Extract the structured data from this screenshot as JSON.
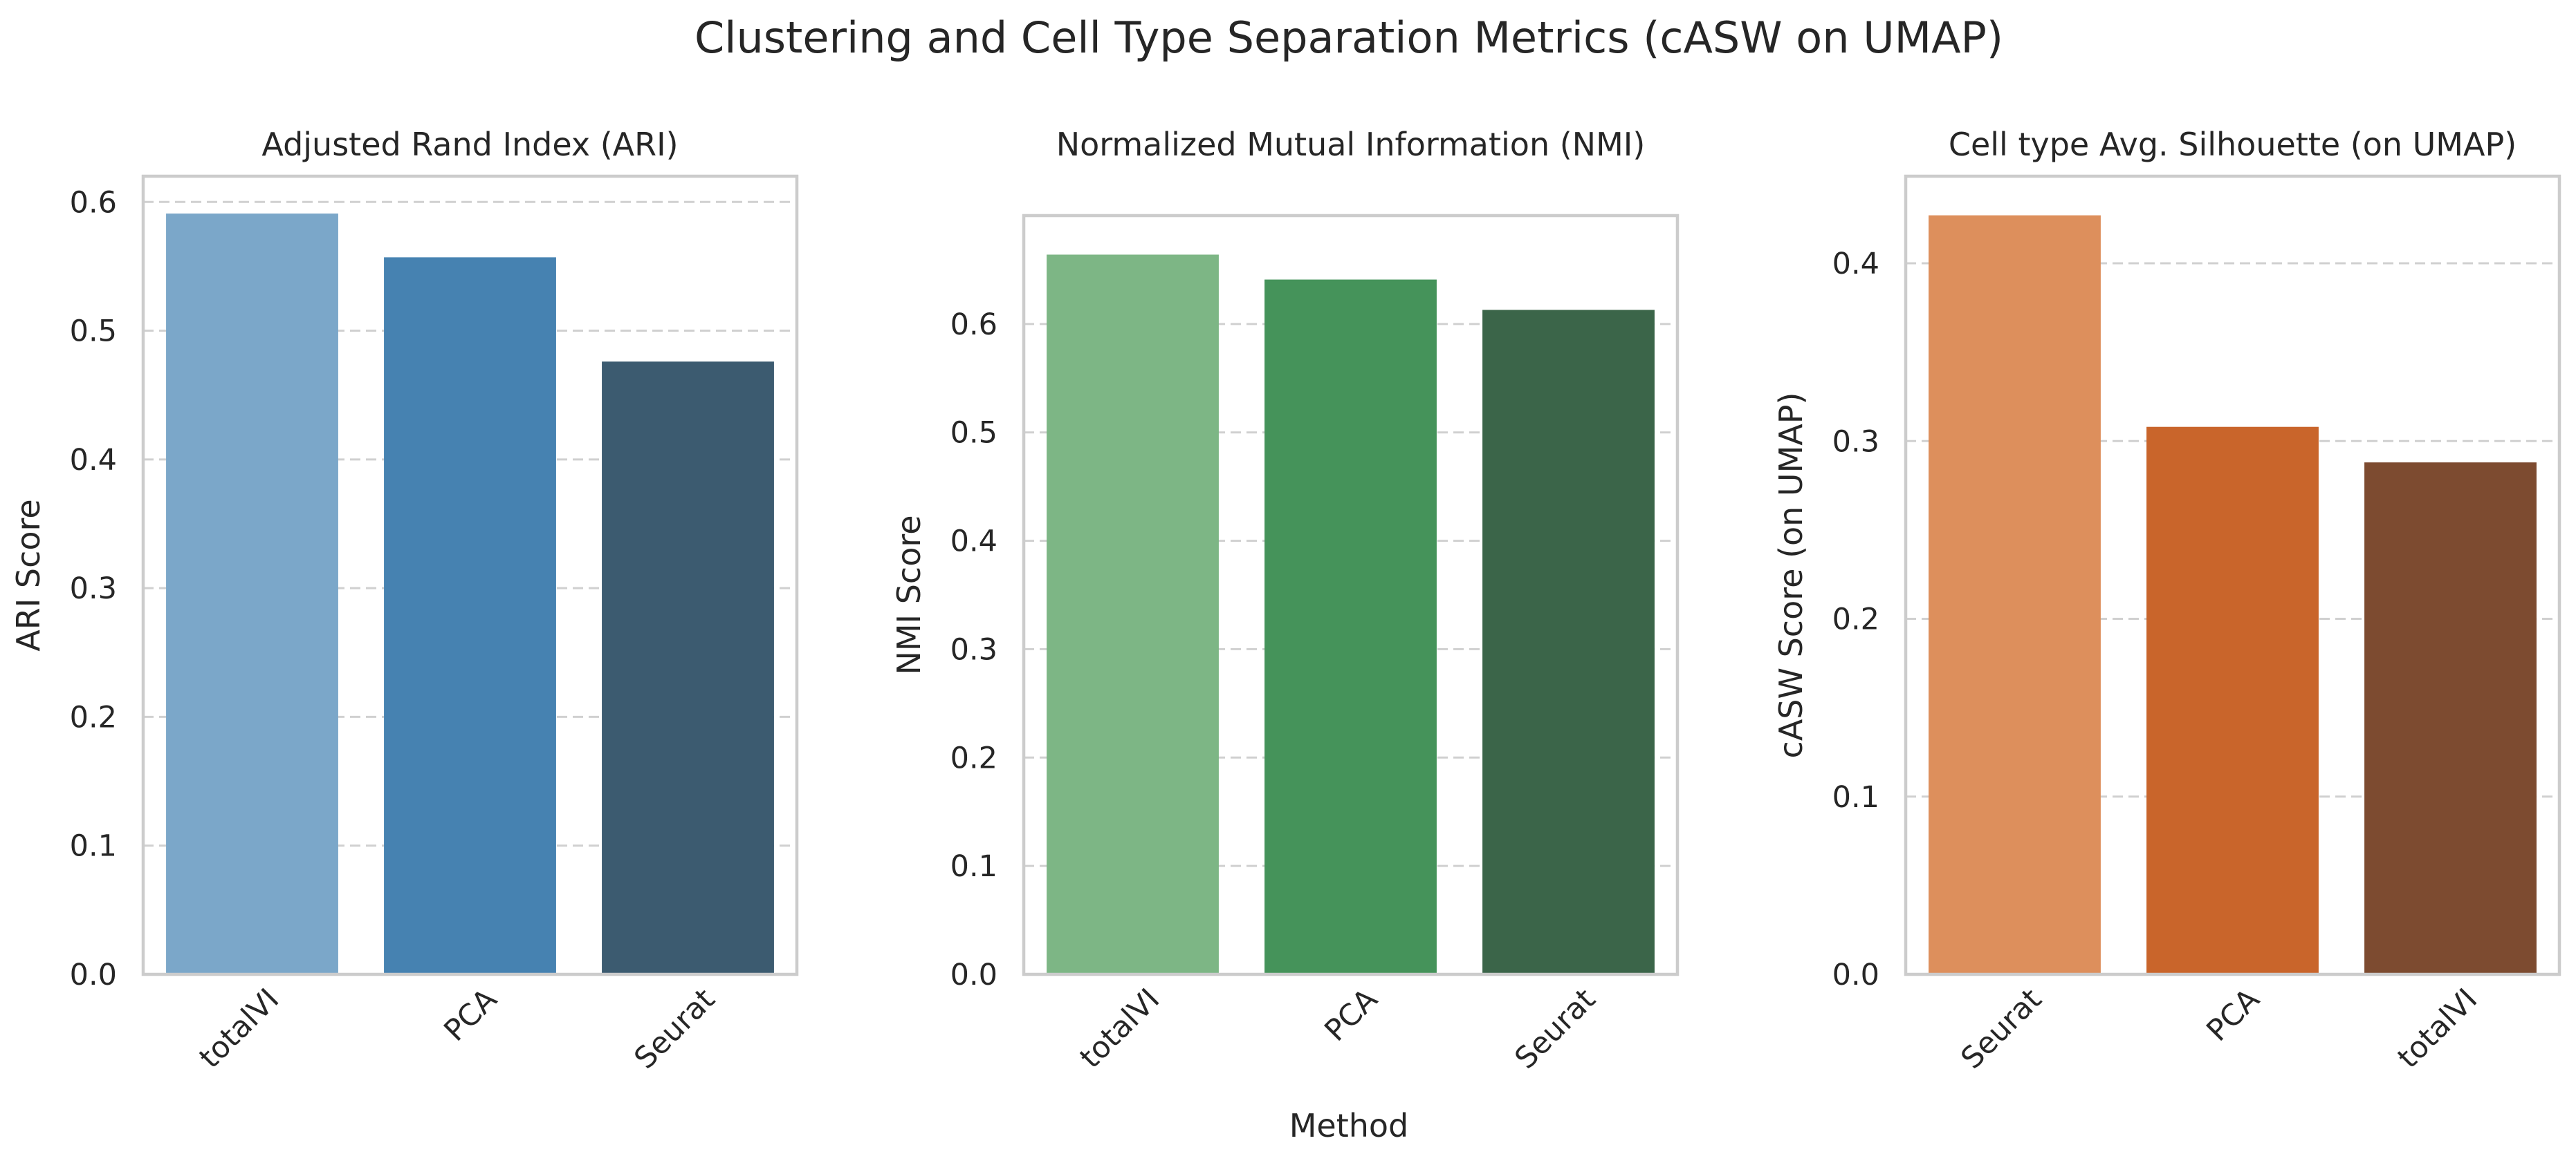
{
  "title": "Clustering and Cell Type Separation Metrics (cASW on UMAP)",
  "shared_xlabel": "Method",
  "chart_data": [
    {
      "type": "bar",
      "title": "Adjusted Rand Index (ARI)",
      "xlabel": "",
      "ylabel": "ARI Score",
      "categories": [
        "totalVI",
        "PCA",
        "Seurat"
      ],
      "values": [
        0.591,
        0.557,
        0.476
      ],
      "colors": [
        "#7ba7c9",
        "#4682b1",
        "#3c5b70"
      ],
      "ylim": [
        0,
        0.62
      ],
      "yticks": [
        0.0,
        0.1,
        0.2,
        0.3,
        0.4,
        0.5,
        0.6
      ],
      "ytick_labels": [
        "0.0",
        "0.1",
        "0.2",
        "0.3",
        "0.4",
        "0.5",
        "0.6"
      ],
      "grid": "y-dashed"
    },
    {
      "type": "bar",
      "title": "Normalized Mutual Information (NMI)",
      "xlabel": "Method",
      "ylabel": "NMI Score",
      "categories": [
        "totalVI",
        "PCA",
        "Seurat"
      ],
      "values": [
        0.664,
        0.641,
        0.613
      ],
      "colors": [
        "#7db685",
        "#45935a",
        "#3b6549"
      ],
      "ylim": [
        0,
        0.7
      ],
      "yticks": [
        0.0,
        0.1,
        0.2,
        0.3,
        0.4,
        0.5,
        0.6
      ],
      "ytick_labels": [
        "0.0",
        "0.1",
        "0.2",
        "0.3",
        "0.4",
        "0.5",
        "0.6"
      ],
      "grid": "y-dashed"
    },
    {
      "type": "bar",
      "title": "Cell type Avg. Silhouette (on UMAP)",
      "xlabel": "",
      "ylabel": "cASW Score (on UMAP)",
      "categories": [
        "Seurat",
        "PCA",
        "totalVI"
      ],
      "values": [
        0.427,
        0.308,
        0.288
      ],
      "colors": [
        "#dd8f5c",
        "#c9652b",
        "#7d4b30"
      ],
      "ylim": [
        0,
        0.449
      ],
      "yticks": [
        0.0,
        0.1,
        0.2,
        0.3,
        0.4
      ],
      "ytick_labels": [
        "0.0",
        "0.1",
        "0.2",
        "0.3",
        "0.4"
      ],
      "grid": "y-dashed"
    }
  ]
}
